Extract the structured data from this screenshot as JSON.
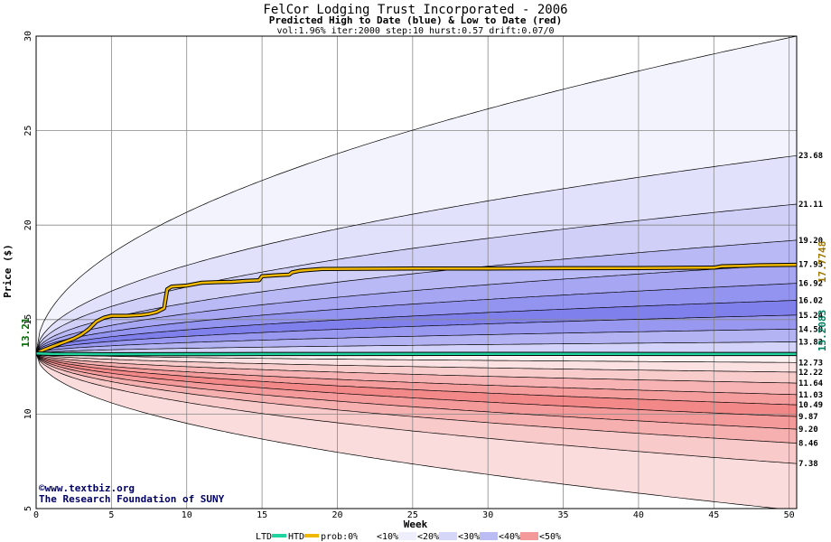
{
  "chart_data": {
    "type": "area",
    "title": "FelCor Lodging Trust Incorporated - 2006",
    "subtitle": "Predicted High to Date (blue) &  Low to Date (red)",
    "params": "vol:1.96% iter:2000 step:10 hurst:0.57 drift:0.07/0",
    "xlabel": "Week",
    "ylabel": "Price ($)",
    "xlim": [
      0,
      50.5
    ],
    "ylim": [
      5,
      30
    ],
    "xticks": [
      0,
      5,
      10,
      15,
      20,
      25,
      30,
      35,
      40,
      45,
      50
    ],
    "yticks": [
      5,
      10,
      15,
      20,
      25,
      30
    ],
    "start_price": 13.21,
    "start_label": "13.21",
    "end_high_label": "17.7748",
    "end_low_label": "13.2083",
    "high_band_ends": [
      30,
      23.68,
      21.11,
      19.2,
      17.93,
      16.92,
      16.02,
      15.24,
      14.5,
      13.82
    ],
    "high_band_labels": [
      "23.68",
      "21.11",
      "19.20",
      "17.93",
      "16.92",
      "16.02",
      "15.24",
      "14.50",
      "13.82"
    ],
    "low_band_ends": [
      12.73,
      12.22,
      11.64,
      11.03,
      10.49,
      9.87,
      9.2,
      8.46,
      7.38,
      4.9
    ],
    "low_band_labels": [
      "12.73",
      "12.22",
      "11.64",
      "11.03",
      "10.49",
      "9.87",
      "9.20",
      "8.46",
      "7.38"
    ],
    "band_fills_high": [
      "#f3f3fd",
      "#e1e1fb",
      "#cfcff8",
      "#b9b9f5",
      "#a6a6f3",
      "#9393f0",
      "#8080ed",
      "#9898f1",
      "#b3b3f4",
      "#d3d3f9"
    ],
    "band_fills_low": [
      "#fbe1e1",
      "#f9cccc",
      "#f7b3b3",
      "#f59c9c",
      "#f38888",
      "#f59a9a",
      "#f7b0b0",
      "#f9caca",
      "#fbdcdc",
      "#fdf1f1"
    ],
    "series": [
      {
        "name": "HTD",
        "color": "#f0b800",
        "points": [
          [
            0,
            13.21
          ],
          [
            0.5,
            13.4
          ],
          [
            1,
            13.55
          ],
          [
            1.5,
            13.7
          ],
          [
            2,
            13.85
          ],
          [
            2.5,
            14.0
          ],
          [
            3,
            14.2
          ],
          [
            3.5,
            14.5
          ],
          [
            4,
            14.9
          ],
          [
            4.5,
            15.1
          ],
          [
            5,
            15.2
          ],
          [
            6,
            15.2
          ],
          [
            7,
            15.25
          ],
          [
            7.5,
            15.3
          ],
          [
            8,
            15.4
          ],
          [
            8.5,
            15.6
          ],
          [
            8.7,
            16.6
          ],
          [
            9,
            16.75
          ],
          [
            10,
            16.8
          ],
          [
            11,
            16.95
          ],
          [
            12,
            16.98
          ],
          [
            13,
            17.0
          ],
          [
            14,
            17.05
          ],
          [
            14.8,
            17.08
          ],
          [
            15,
            17.3
          ],
          [
            16,
            17.35
          ],
          [
            16.8,
            17.38
          ],
          [
            17,
            17.5
          ],
          [
            17.5,
            17.58
          ],
          [
            18,
            17.62
          ],
          [
            19,
            17.68
          ],
          [
            25,
            17.7
          ],
          [
            30,
            17.7
          ],
          [
            35,
            17.72
          ],
          [
            40,
            17.73
          ],
          [
            45,
            17.75
          ],
          [
            45.5,
            17.82
          ],
          [
            47,
            17.85
          ],
          [
            48,
            17.88
          ],
          [
            50.5,
            17.9
          ]
        ]
      },
      {
        "name": "LTD",
        "color": "#20d4a0",
        "points": [
          [
            0,
            13.21
          ],
          [
            1,
            13.19
          ],
          [
            5,
            13.17
          ],
          [
            15,
            13.18
          ],
          [
            30,
            13.19
          ],
          [
            50.5,
            13.18
          ]
        ]
      }
    ]
  },
  "credits": {
    "copyright_symbol": "©",
    "site": "www.textbiz.org",
    "org": "The Research Foundation of SUNY"
  },
  "legend": {
    "ltd": "LTD",
    "htd": "HTD",
    "prob_prefix": "prob:0%",
    "items": [
      "<10%",
      "<20%",
      "<30%",
      "<40%",
      "<50%"
    ],
    "ltd_color": "#20d4a0",
    "htd_color": "#f0b800",
    "swatch_colors": [
      "#ffffff",
      "#eeeefc",
      "#d6d6f8",
      "#bcbcf4",
      "#f49a9a",
      "#8a8af0"
    ]
  }
}
